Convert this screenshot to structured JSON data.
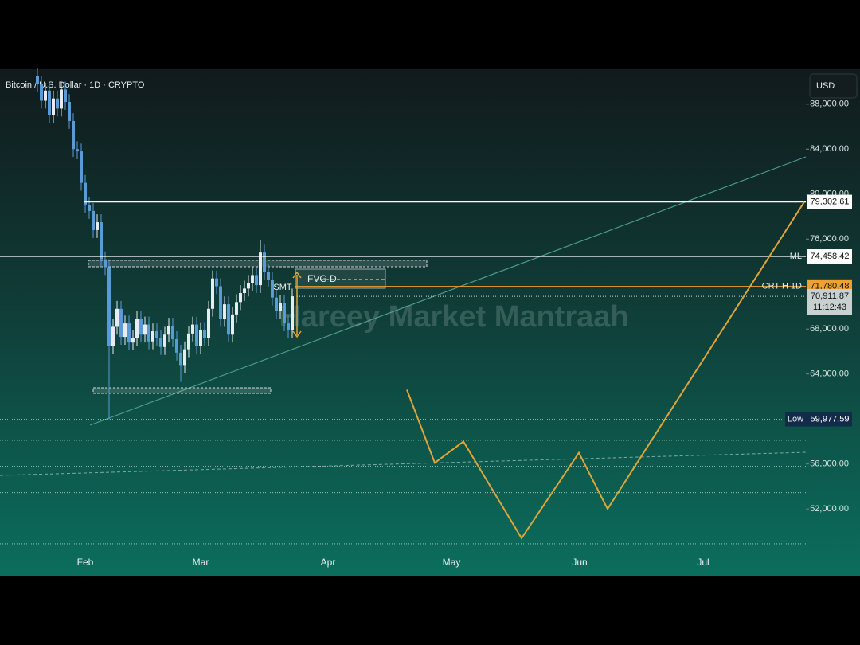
{
  "chart_data": {
    "type": "candlestick",
    "title": "Bitcoin / U.S. Dollar · 1D · CRYPTO",
    "currency_button": "USD",
    "watermark": "Hareey Market Mantraah",
    "ylim": [
      48400,
      91100
    ],
    "yticks": [
      {
        "value": 88000,
        "label": "88,000.00"
      },
      {
        "value": 84000,
        "label": "84,000.00"
      },
      {
        "value": 80000,
        "label": "80,000.00"
      },
      {
        "value": 76000,
        "label": "76,000.00"
      },
      {
        "value": 68000,
        "label": "68,000.00"
      },
      {
        "value": 64000,
        "label": "64,000.00"
      },
      {
        "value": 56000,
        "label": "56,000.00"
      },
      {
        "value": 52000,
        "label": "52,000.00"
      }
    ],
    "x_labels": [
      "Feb",
      "Mar",
      "Apr",
      "May",
      "Jun",
      "Jul"
    ],
    "up_color": "#e6ecef",
    "down_color": "#5b9bd5",
    "open": [
      90500,
      89800,
      88300,
      89200,
      87000,
      88500,
      87600,
      89300,
      88200,
      86500,
      84000,
      83800,
      81000,
      79000,
      78500,
      76800,
      77500,
      74200,
      73500,
      66500,
      68200,
      69800,
      67300,
      68500,
      66800,
      67200,
      68900,
      67500,
      68400,
      66900,
      67800,
      67200,
      66400,
      67500,
      68300,
      67100,
      65900,
      64800,
      66200,
      67600,
      68400,
      66500,
      67900,
      67200,
      69800,
      72500,
      71800,
      68900,
      70200,
      67500,
      69300,
      70400,
      71200,
      71600,
      72100,
      72800,
      71900,
      74800,
      73100,
      72400,
      70800,
      69600,
      70300,
      68500,
      67900
    ],
    "high": [
      91200,
      90500,
      89900,
      89900,
      89200,
      89200,
      90000,
      90000,
      88900,
      87200,
      84700,
      84500,
      81700,
      79700,
      79200,
      78200,
      78200,
      74900,
      74200,
      68900,
      70500,
      70500,
      69200,
      69200,
      67900,
      69600,
      69600,
      69100,
      69100,
      68500,
      68500,
      67900,
      68200,
      69000,
      69000,
      67800,
      66600,
      66900,
      68300,
      69100,
      69100,
      68600,
      68600,
      70500,
      73200,
      73200,
      72500,
      70900,
      70900,
      70000,
      71100,
      71900,
      72300,
      72800,
      73500,
      73500,
      75900,
      75500,
      73800,
      73100,
      71500,
      71000,
      71000,
      69200,
      71600
    ],
    "low": [
      89100,
      87600,
      87600,
      86300,
      86300,
      86900,
      86900,
      87500,
      85800,
      83300,
      83100,
      80300,
      78300,
      77800,
      76100,
      76100,
      73500,
      72800,
      59977.59,
      65800,
      67500,
      66600,
      66600,
      66100,
      66100,
      66500,
      66800,
      66800,
      66200,
      66200,
      66500,
      65700,
      65700,
      66800,
      66400,
      65200,
      63300,
      64100,
      65500,
      66900,
      65800,
      65800,
      66500,
      66500,
      69100,
      71100,
      68200,
      68200,
      66800,
      66800,
      68600,
      69700,
      70500,
      70900,
      71400,
      71200,
      71200,
      72400,
      71700,
      70100,
      68900,
      68900,
      67800,
      67200,
      67200
    ],
    "close": [
      89800,
      88300,
      89200,
      87000,
      88500,
      87600,
      89300,
      88200,
      86500,
      84000,
      83800,
      81000,
      79000,
      78500,
      76800,
      77500,
      74200,
      73500,
      66500,
      68200,
      69800,
      67300,
      68500,
      66800,
      67200,
      68900,
      67500,
      68400,
      66900,
      67800,
      67200,
      66400,
      67500,
      68300,
      67100,
      65900,
      64800,
      66200,
      67600,
      68400,
      66500,
      67900,
      67200,
      69800,
      72500,
      71800,
      68900,
      70200,
      67500,
      69300,
      70400,
      71200,
      71600,
      72100,
      72800,
      71900,
      74800,
      73100,
      72400,
      70800,
      69600,
      70300,
      68500,
      67900,
      70911.87
    ],
    "levels": [
      {
        "value": 79302.61,
        "label": "79,302.61",
        "color": "#ffffff"
      },
      {
        "name": "ML",
        "value": 74458.42,
        "label": "74,458.42",
        "color": "#ffffff"
      },
      {
        "name": "CRT H 1D",
        "value": 71780.48,
        "label": "71,780.48",
        "color": "#f0a030"
      },
      {
        "name": "Low",
        "value": 59977.59,
        "label": "59,977.59",
        "color": "#ffffff"
      }
    ],
    "last_price": {
      "value": 70911.87,
      "label": "70,911.87",
      "countdown": "11:12:43"
    },
    "dotted_levels": [
      58100,
      55800,
      53450,
      51200,
      48900
    ],
    "projection": {
      "color": "#e0a53a",
      "values": [
        62600,
        56100,
        58000,
        49400,
        57000,
        52000,
        79302.61
      ]
    },
    "annotations": [
      "SMT",
      "FVG D"
    ]
  }
}
